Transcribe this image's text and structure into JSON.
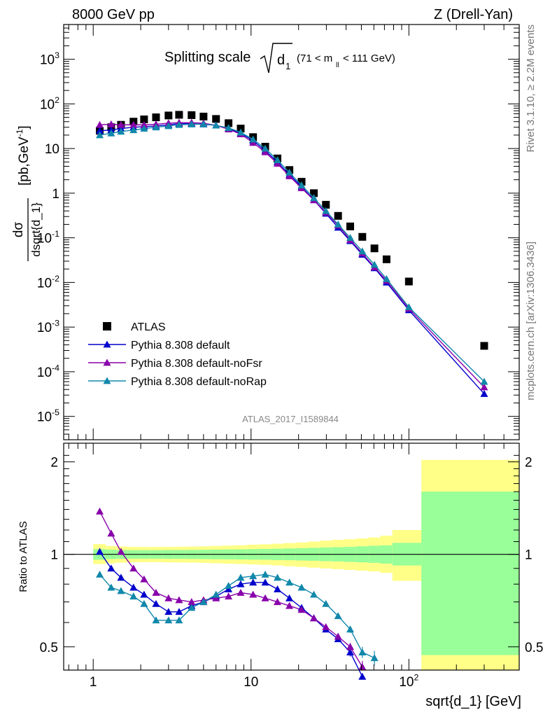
{
  "header": {
    "left": "8000 GeV pp",
    "right": "Z (Drell-Yan)"
  },
  "side_labels": {
    "rivet": "Rivet 3.1.10, ≥ 2.2M events",
    "mcplots": "mcplots.cern.ch [arXiv:1306.3436]"
  },
  "chart_data": [
    {
      "type": "scatter",
      "title": "Splitting scale √d₁ (71 < m_ll < 111 GeV)",
      "title_main": "Splitting scale",
      "title_sym": "d",
      "title_sub": "1",
      "title_range": "(71 < m",
      "title_range_sub": "ll",
      "title_range_end": "< 111 GeV)",
      "analysis_id": "ATLAS_2017_I1589844",
      "ylabel": "dσ/dsqrt{d_1} [pb,GeV⁻¹]",
      "ylabel_num": "dσ",
      "ylabel_den": "dsqrt{d_1}",
      "ylabel_units": "[pb,GeV",
      "ylabel_units_sup": "-1",
      "ylabel_units_end": "]",
      "xscale": "log",
      "yscale": "log",
      "xlim": [
        0.65,
        500
      ],
      "ylim": [
        3e-06,
        6000
      ],
      "y_ticks": [
        {
          "v": 1e-05,
          "b": "10",
          "e": "-5"
        },
        {
          "v": 0.0001,
          "b": "10",
          "e": "-4"
        },
        {
          "v": 0.001,
          "b": "10",
          "e": "-3"
        },
        {
          "v": 0.01,
          "b": "10",
          "e": "-2"
        },
        {
          "v": 0.1,
          "b": "10",
          "e": "-1"
        },
        {
          "v": 1,
          "b": "1",
          "e": ""
        },
        {
          "v": 10,
          "b": "10",
          "e": ""
        },
        {
          "v": 100,
          "b": "10",
          "e": "2"
        },
        {
          "v": 1000,
          "b": "10",
          "e": "3"
        }
      ],
      "legend_position": "lower-left",
      "series": [
        {
          "name": "ATLAS",
          "color": "#000000",
          "marker": "square",
          "x": [
            1.1,
            1.3,
            1.5,
            1.8,
            2.1,
            2.5,
            3.0,
            3.5,
            4.2,
            5.0,
            6.0,
            7.2,
            8.6,
            10.3,
            12.3,
            14.7,
            17.5,
            20.9,
            25.0,
            29.8,
            35.6,
            42.5,
            50.7,
            60.5,
            72.2,
            100.0,
            300.0
          ],
          "y": [
            25,
            30,
            34,
            40,
            45,
            50,
            55,
            57,
            56,
            52,
            46,
            37,
            28,
            18,
            11,
            6.0,
            3.3,
            1.8,
            1.0,
            0.55,
            0.31,
            0.18,
            0.105,
            0.058,
            0.033,
            0.0105,
            0.00038
          ]
        },
        {
          "name": "Pythia 8.308 default",
          "color": "#0000cc",
          "marker": "triangle",
          "x": [
            1.1,
            1.3,
            1.5,
            1.8,
            2.1,
            2.5,
            3.0,
            3.5,
            4.2,
            5.0,
            6.0,
            7.2,
            8.6,
            10.3,
            12.3,
            14.7,
            17.5,
            20.9,
            25.0,
            29.8,
            35.6,
            42.5,
            50.7,
            60.5,
            72.2,
            100.0,
            300.0
          ],
          "y": [
            25,
            26,
            28,
            30,
            31,
            32,
            34,
            36,
            36,
            35,
            33,
            28,
            22,
            15,
            9.0,
            5.0,
            2.6,
            1.4,
            0.7,
            0.35,
            0.17,
            0.085,
            0.042,
            0.021,
            0.01,
            0.0024,
            3.2e-05
          ]
        },
        {
          "name": "Pythia 8.308 default-noFsr",
          "color": "#8800aa",
          "marker": "triangle",
          "x": [
            1.1,
            1.3,
            1.5,
            1.8,
            2.1,
            2.5,
            3.0,
            3.5,
            4.2,
            5.0,
            6.0,
            7.2,
            8.6,
            10.3,
            12.3,
            14.7,
            17.5,
            20.9,
            25.0,
            29.8,
            35.6,
            42.5,
            50.7,
            60.5,
            72.2,
            100.0,
            300.0
          ],
          "y": [
            34,
            35,
            34,
            34,
            34,
            35,
            37,
            38,
            38,
            37,
            33,
            27,
            21,
            13.5,
            8.3,
            4.6,
            2.4,
            1.3,
            0.7,
            0.37,
            0.19,
            0.09,
            0.045,
            0.022,
            0.011,
            0.0026,
            4.5e-05
          ]
        },
        {
          "name": "Pythia 8.308 default-noRap",
          "color": "#1188aa",
          "marker": "triangle",
          "x": [
            1.1,
            1.3,
            1.5,
            1.8,
            2.1,
            2.5,
            3.0,
            3.5,
            4.2,
            5.0,
            6.0,
            7.2,
            8.6,
            10.3,
            12.3,
            14.7,
            17.5,
            20.9,
            25.0,
            29.8,
            35.6,
            42.5,
            50.7,
            60.5,
            72.2,
            100.0,
            300.0
          ],
          "y": [
            20,
            22,
            24,
            26,
            28,
            30,
            32,
            34,
            35,
            35,
            33,
            29,
            23,
            16,
            10,
            5.5,
            2.9,
            1.5,
            0.78,
            0.4,
            0.2,
            0.1,
            0.05,
            0.025,
            0.012,
            0.0028,
            6e-05
          ]
        }
      ]
    },
    {
      "type": "scatter",
      "ylabel": "Ratio to ATLAS",
      "xlabel": "sqrt{d_1} [GeV]",
      "xscale": "log",
      "yscale": "log",
      "xlim": [
        0.65,
        500
      ],
      "ylim": [
        0.42,
        2.3
      ],
      "x_ticks": [
        {
          "v": 1,
          "b": "1",
          "e": ""
        },
        {
          "v": 10,
          "b": "10",
          "e": ""
        },
        {
          "v": 100,
          "b": "10",
          "e": "2"
        }
      ],
      "y_ticks": [
        {
          "v": 0.5,
          "label": "0.5"
        },
        {
          "v": 1,
          "label": "1"
        },
        {
          "v": 2,
          "label": "2"
        }
      ],
      "band_colors": {
        "stat": "#99ff99",
        "total": "#ffff88"
      },
      "bands": [
        {
          "x0": 1.0,
          "x1": 1.2,
          "stat": [
            0.96,
            1.04
          ],
          "total": [
            0.93,
            1.08
          ]
        },
        {
          "x0": 1.2,
          "x1": 1.4,
          "stat": [
            0.965,
            1.035
          ],
          "total": [
            0.935,
            1.065
          ]
        },
        {
          "x0": 1.4,
          "x1": 1.65,
          "stat": [
            0.967,
            1.033
          ],
          "total": [
            0.94,
            1.06
          ]
        },
        {
          "x0": 1.65,
          "x1": 1.95,
          "stat": [
            0.968,
            1.032
          ],
          "total": [
            0.942,
            1.058
          ]
        },
        {
          "x0": 1.95,
          "x1": 2.3,
          "stat": [
            0.968,
            1.032
          ],
          "total": [
            0.943,
            1.057
          ]
        },
        {
          "x0": 2.3,
          "x1": 2.75,
          "stat": [
            0.968,
            1.032
          ],
          "total": [
            0.943,
            1.057
          ]
        },
        {
          "x0": 2.75,
          "x1": 3.25,
          "stat": [
            0.967,
            1.033
          ],
          "total": [
            0.942,
            1.058
          ]
        },
        {
          "x0": 3.25,
          "x1": 3.85,
          "stat": [
            0.967,
            1.033
          ],
          "total": [
            0.941,
            1.059
          ]
        },
        {
          "x0": 3.85,
          "x1": 4.6,
          "stat": [
            0.966,
            1.034
          ],
          "total": [
            0.94,
            1.06
          ]
        },
        {
          "x0": 4.6,
          "x1": 5.5,
          "stat": [
            0.965,
            1.035
          ],
          "total": [
            0.938,
            1.062
          ]
        },
        {
          "x0": 5.5,
          "x1": 6.6,
          "stat": [
            0.964,
            1.036
          ],
          "total": [
            0.935,
            1.065
          ]
        },
        {
          "x0": 6.6,
          "x1": 7.9,
          "stat": [
            0.963,
            1.037
          ],
          "total": [
            0.932,
            1.068
          ]
        },
        {
          "x0": 7.9,
          "x1": 9.4,
          "stat": [
            0.962,
            1.038
          ],
          "total": [
            0.93,
            1.07
          ]
        },
        {
          "x0": 9.4,
          "x1": 11.2,
          "stat": [
            0.961,
            1.04
          ],
          "total": [
            0.927,
            1.075
          ]
        },
        {
          "x0": 11.2,
          "x1": 13.4,
          "stat": [
            0.96,
            1.041
          ],
          "total": [
            0.924,
            1.078
          ]
        },
        {
          "x0": 13.4,
          "x1": 16.0,
          "stat": [
            0.958,
            1.043
          ],
          "total": [
            0.92,
            1.083
          ]
        },
        {
          "x0": 16.0,
          "x1": 19.1,
          "stat": [
            0.957,
            1.045
          ],
          "total": [
            0.915,
            1.088
          ]
        },
        {
          "x0": 19.1,
          "x1": 22.8,
          "stat": [
            0.955,
            1.047
          ],
          "total": [
            0.91,
            1.093
          ]
        },
        {
          "x0": 22.8,
          "x1": 27.2,
          "stat": [
            0.953,
            1.05
          ],
          "total": [
            0.905,
            1.1
          ]
        },
        {
          "x0": 27.2,
          "x1": 32.5,
          "stat": [
            0.95,
            1.053
          ],
          "total": [
            0.9,
            1.108
          ]
        },
        {
          "x0": 32.5,
          "x1": 38.8,
          "stat": [
            0.948,
            1.055
          ],
          "total": [
            0.895,
            1.115
          ]
        },
        {
          "x0": 38.8,
          "x1": 46.3,
          "stat": [
            0.945,
            1.058
          ],
          "total": [
            0.89,
            1.12
          ]
        },
        {
          "x0": 46.3,
          "x1": 55.2,
          "stat": [
            0.942,
            1.062
          ],
          "total": [
            0.885,
            1.127
          ]
        },
        {
          "x0": 55.2,
          "x1": 65.9,
          "stat": [
            0.938,
            1.066
          ],
          "total": [
            0.88,
            1.135
          ]
        },
        {
          "x0": 65.9,
          "x1": 78.6,
          "stat": [
            0.933,
            1.07
          ],
          "total": [
            0.87,
            1.15
          ]
        },
        {
          "x0": 78.6,
          "x1": 120.0,
          "stat": [
            0.92,
            1.09
          ],
          "total": [
            0.82,
            1.2
          ]
        },
        {
          "x0": 120.0,
          "x1": 500.0,
          "stat": [
            0.47,
            1.6
          ],
          "total": [
            0.38,
            2.03
          ]
        }
      ],
      "series": [
        {
          "name": "Pythia 8.308 default",
          "color": "#0000cc",
          "x": [
            1.1,
            1.3,
            1.5,
            1.8,
            2.1,
            2.5,
            3.0,
            3.5,
            4.2,
            5.0,
            6.0,
            7.2,
            8.6,
            10.3,
            12.3,
            14.7,
            17.5,
            20.9,
            25.0,
            29.8,
            35.6,
            42.5,
            50.7
          ],
          "y": [
            1.02,
            0.9,
            0.84,
            0.78,
            0.74,
            0.69,
            0.65,
            0.65,
            0.68,
            0.7,
            0.73,
            0.77,
            0.8,
            0.81,
            0.81,
            0.77,
            0.72,
            0.67,
            0.62,
            0.57,
            0.53,
            0.48,
            0.4
          ],
          "err": [
            0,
            0,
            0,
            0,
            0,
            0,
            0,
            0,
            0,
            0,
            0,
            0,
            0,
            0,
            0,
            0,
            0,
            0,
            0,
            0,
            0,
            0.015,
            0.02
          ]
        },
        {
          "name": "Pythia 8.308 default-noFsr",
          "color": "#8800aa",
          "x": [
            1.1,
            1.3,
            1.5,
            1.8,
            2.1,
            2.5,
            3.0,
            3.5,
            4.2,
            5.0,
            6.0,
            7.2,
            8.6,
            10.3,
            12.3,
            14.7,
            17.5,
            20.9,
            25.0,
            29.8,
            35.6,
            42.5,
            50.7
          ],
          "y": [
            1.38,
            1.17,
            1.02,
            0.9,
            0.83,
            0.75,
            0.72,
            0.71,
            0.7,
            0.71,
            0.72,
            0.73,
            0.75,
            0.74,
            0.72,
            0.7,
            0.68,
            0.66,
            0.62,
            0.58,
            0.54,
            0.5,
            0.43
          ],
          "err": [
            0,
            0,
            0,
            0,
            0,
            0,
            0,
            0,
            0,
            0,
            0,
            0,
            0,
            0,
            0,
            0,
            0,
            0,
            0,
            0,
            0,
            0.015,
            0.02
          ]
        },
        {
          "name": "Pythia 8.308 default-noRap",
          "color": "#1188aa",
          "x": [
            1.1,
            1.3,
            1.5,
            1.8,
            2.1,
            2.5,
            3.0,
            3.5,
            4.2,
            5.0,
            6.0,
            7.2,
            8.6,
            10.3,
            12.3,
            14.7,
            17.5,
            20.9,
            25.0,
            29.8,
            35.6,
            42.5,
            50.7,
            60.5
          ],
          "y": [
            0.86,
            0.78,
            0.76,
            0.73,
            0.69,
            0.61,
            0.61,
            0.61,
            0.67,
            0.7,
            0.74,
            0.79,
            0.84,
            0.85,
            0.86,
            0.84,
            0.81,
            0.78,
            0.74,
            0.69,
            0.63,
            0.57,
            0.48,
            0.46
          ],
          "err": [
            0,
            0,
            0,
            0,
            0,
            0,
            0,
            0,
            0,
            0,
            0,
            0,
            0,
            0,
            0,
            0,
            0,
            0,
            0,
            0,
            0,
            0.015,
            0.02,
            0.025
          ]
        }
      ]
    }
  ]
}
